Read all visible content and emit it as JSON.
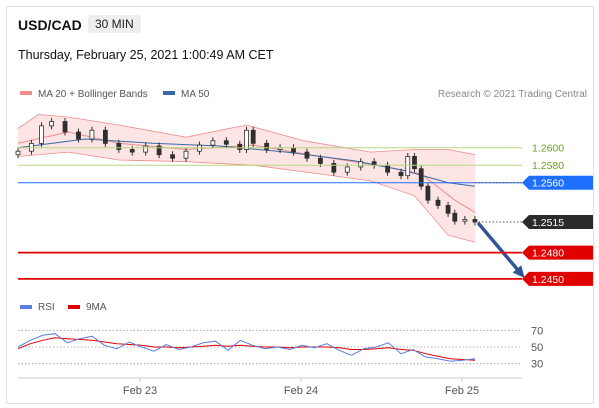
{
  "header": {
    "symbol": "USD/CAD",
    "interval": "30 MIN",
    "datetime": "Thursday, February 25, 2021 1:00:49 AM CET"
  },
  "colors": {
    "candle_up": "#2f2f2f",
    "candle_down": "#2f2f2f",
    "bollinger": "#f08c8c",
    "bollinger_fill": "#fde2e2",
    "ma50": "#3a6aa6",
    "resistance": "#b6d97e",
    "pivot": "#1f6fff",
    "current": "#2b2b2b",
    "support": "#e00000",
    "rsi": "#5a7fe0",
    "rsi_ma": "#e00000",
    "arrow": "#2f5597"
  },
  "chart_data": [
    {
      "type": "line",
      "title": "",
      "legend": [
        {
          "name": "MA 20 + Bollinger Bands",
          "color": "#f08c8c"
        },
        {
          "name": "MA 50",
          "color": "#3a6aa6"
        }
      ],
      "credit": "Research © 2021 Trading Central",
      "x_tick_labels": [
        "Feb 23",
        "Feb 24",
        "Feb 25"
      ],
      "ylim": [
        1.2435,
        1.265
      ],
      "levels": [
        {
          "value": 1.26,
          "label": "1.2600",
          "kind": "resistance"
        },
        {
          "value": 1.258,
          "label": "1.2580",
          "kind": "resistance"
        },
        {
          "value": 1.256,
          "label": "1.2560",
          "kind": "pivot"
        },
        {
          "value": 1.2515,
          "label": "1.2515",
          "kind": "current"
        },
        {
          "value": 1.248,
          "label": "1.2480",
          "kind": "support"
        },
        {
          "value": 1.245,
          "label": "1.2450",
          "kind": "support"
        }
      ],
      "price_series": [
        {
          "x": 0,
          "close": 1.2596
        },
        {
          "x": 4,
          "close": 1.2605
        },
        {
          "x": 7,
          "close": 1.2625
        },
        {
          "x": 10,
          "close": 1.263
        },
        {
          "x": 14,
          "close": 1.2618
        },
        {
          "x": 18,
          "close": 1.261
        },
        {
          "x": 22,
          "close": 1.262
        },
        {
          "x": 26,
          "close": 1.2605
        },
        {
          "x": 30,
          "close": 1.2598
        },
        {
          "x": 34,
          "close": 1.2595
        },
        {
          "x": 38,
          "close": 1.2602
        },
        {
          "x": 42,
          "close": 1.2592
        },
        {
          "x": 46,
          "close": 1.2588
        },
        {
          "x": 50,
          "close": 1.2596
        },
        {
          "x": 54,
          "close": 1.2603
        },
        {
          "x": 58,
          "close": 1.2608
        },
        {
          "x": 62,
          "close": 1.2604
        },
        {
          "x": 66,
          "close": 1.2598
        },
        {
          "x": 68,
          "close": 1.262
        },
        {
          "x": 70,
          "close": 1.2605
        },
        {
          "x": 74,
          "close": 1.2598
        },
        {
          "x": 78,
          "close": 1.26
        },
        {
          "x": 82,
          "close": 1.2595
        },
        {
          "x": 86,
          "close": 1.2588
        },
        {
          "x": 90,
          "close": 1.2582
        },
        {
          "x": 94,
          "close": 1.2572
        },
        {
          "x": 98,
          "close": 1.2578
        },
        {
          "x": 102,
          "close": 1.2584
        },
        {
          "x": 106,
          "close": 1.258
        },
        {
          "x": 110,
          "close": 1.2572
        },
        {
          "x": 114,
          "close": 1.2568
        },
        {
          "x": 116,
          "close": 1.259
        },
        {
          "x": 118,
          "close": 1.2576
        },
        {
          "x": 120,
          "close": 1.2556
        },
        {
          "x": 122,
          "close": 1.254
        },
        {
          "x": 125,
          "close": 1.2534
        },
        {
          "x": 128,
          "close": 1.2525
        },
        {
          "x": 130,
          "close": 1.2516
        },
        {
          "x": 133,
          "close": 1.2518
        },
        {
          "x": 136,
          "close": 1.2515
        }
      ],
      "ma50": [
        {
          "x": 0,
          "value": 1.26
        },
        {
          "x": 20,
          "value": 1.261
        },
        {
          "x": 40,
          "value": 1.2605
        },
        {
          "x": 60,
          "value": 1.2602
        },
        {
          "x": 80,
          "value": 1.2595
        },
        {
          "x": 100,
          "value": 1.2585
        },
        {
          "x": 115,
          "value": 1.2574
        },
        {
          "x": 128,
          "value": 1.256
        },
        {
          "x": 136,
          "value": 1.2556
        }
      ],
      "ma20": [
        {
          "x": 0,
          "value": 1.2605
        },
        {
          "x": 15,
          "value": 1.2618
        },
        {
          "x": 30,
          "value": 1.2605
        },
        {
          "x": 50,
          "value": 1.2598
        },
        {
          "x": 70,
          "value": 1.2603
        },
        {
          "x": 90,
          "value": 1.259
        },
        {
          "x": 110,
          "value": 1.2578
        },
        {
          "x": 120,
          "value": 1.257
        },
        {
          "x": 130,
          "value": 1.254
        },
        {
          "x": 136,
          "value": 1.2526
        }
      ],
      "bb_upper": [
        {
          "x": 0,
          "value": 1.2622
        },
        {
          "x": 6,
          "value": 1.2638
        },
        {
          "x": 15,
          "value": 1.2635
        },
        {
          "x": 30,
          "value": 1.2626
        },
        {
          "x": 50,
          "value": 1.2612
        },
        {
          "x": 68,
          "value": 1.2626
        },
        {
          "x": 85,
          "value": 1.2608
        },
        {
          "x": 105,
          "value": 1.2595
        },
        {
          "x": 118,
          "value": 1.2598
        },
        {
          "x": 128,
          "value": 1.2598
        },
        {
          "x": 136,
          "value": 1.2592
        }
      ],
      "bb_lower": [
        {
          "x": 0,
          "value": 1.259
        },
        {
          "x": 15,
          "value": 1.2595
        },
        {
          "x": 30,
          "value": 1.2586
        },
        {
          "x": 50,
          "value": 1.2584
        },
        {
          "x": 70,
          "value": 1.258
        },
        {
          "x": 90,
          "value": 1.257
        },
        {
          "x": 105,
          "value": 1.2562
        },
        {
          "x": 118,
          "value": 1.2545
        },
        {
          "x": 128,
          "value": 1.25
        },
        {
          "x": 136,
          "value": 1.2492
        }
      ],
      "projection_arrow": {
        "from": {
          "x": 136,
          "value": 1.2515
        },
        "to": {
          "x": 150,
          "value": 1.2455
        }
      }
    },
    {
      "type": "line",
      "title": "",
      "legend": [
        {
          "name": "RSI",
          "color": "#5a7fe0"
        },
        {
          "name": "9MA",
          "color": "#e00000"
        }
      ],
      "ylim": [
        20,
        80
      ],
      "y_ticks": [
        70,
        50,
        30
      ],
      "series": [
        {
          "name": "RSI",
          "values": [
            50,
            58,
            64,
            66,
            55,
            60,
            63,
            52,
            48,
            56,
            50,
            45,
            53,
            47,
            50,
            55,
            57,
            46,
            58,
            52,
            48,
            50,
            47,
            52,
            49,
            54,
            46,
            40,
            48,
            50,
            55,
            42,
            47,
            38,
            36,
            33,
            34,
            36
          ]
        },
        {
          "name": "9MA",
          "values": [
            48,
            54,
            58,
            61,
            60,
            59,
            58,
            56,
            54,
            53,
            52,
            50,
            50,
            49,
            50,
            51,
            52,
            51,
            52,
            51,
            50,
            50,
            49,
            50,
            50,
            50,
            49,
            47,
            47,
            48,
            49,
            47,
            46,
            42,
            39,
            36,
            35,
            34
          ]
        }
      ]
    }
  ]
}
